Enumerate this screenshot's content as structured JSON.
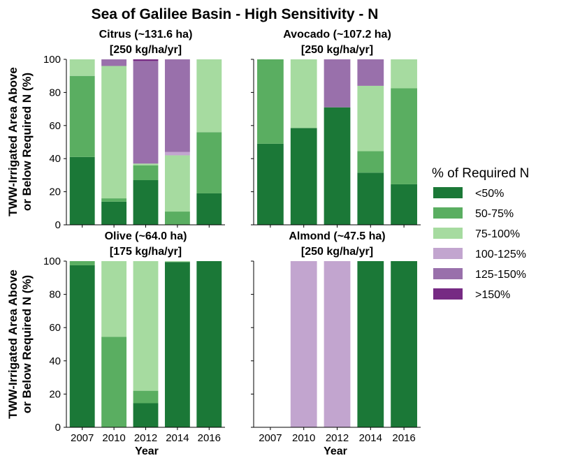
{
  "figure_title": "Sea of Galilee Basin - High Sensitivity - N",
  "ylabel_line1": "TWW-Irrigated Area Above",
  "ylabel_line2": "or Below Required N (%)",
  "xlabel": "Year",
  "legend": {
    "title": "% of Required N",
    "entries": [
      {
        "label": "<50%",
        "color": "#1b7837"
      },
      {
        "label": "50-75%",
        "color": "#5aae61"
      },
      {
        "label": "75-100%",
        "color": "#a6dba0"
      },
      {
        "label": "100-125%",
        "color": "#c2a5cf"
      },
      {
        "label": "125-150%",
        "color": "#9970ab"
      },
      {
        "label": ">150%",
        "color": "#762a83"
      }
    ]
  },
  "chart_data": [
    {
      "type": "bar",
      "stacked": true,
      "title_line1": "Citrus (~131.6 ha)",
      "title_line2": "[250 kg/ha/yr]",
      "categories": [
        "2007",
        "2010",
        "2012",
        "2014",
        "2016"
      ],
      "ylim": [
        0,
        100
      ],
      "yticks": [
        0,
        20,
        40,
        60,
        80,
        100
      ],
      "series": [
        {
          "name": "<50%",
          "values": [
            41,
            14,
            27,
            0,
            19
          ]
        },
        {
          "name": "50-75%",
          "values": [
            49,
            2,
            9,
            8,
            37
          ]
        },
        {
          "name": "75-100%",
          "values": [
            10,
            80,
            1,
            34,
            44
          ]
        },
        {
          "name": "100-125%",
          "values": [
            0,
            0,
            0,
            2,
            0
          ]
        },
        {
          "name": "125-150%",
          "values": [
            0,
            4,
            62,
            56,
            0
          ]
        },
        {
          "name": ">150%",
          "values": [
            0,
            0,
            1,
            0,
            0
          ]
        }
      ]
    },
    {
      "type": "bar",
      "stacked": true,
      "title_line1": "Avocado (~107.2 ha)",
      "title_line2": "[250 kg/ha/yr]",
      "categories": [
        "2007",
        "2010",
        "2012",
        "2014",
        "2016"
      ],
      "ylim": [
        0,
        100
      ],
      "yticks": [
        0,
        20,
        40,
        60,
        80,
        100
      ],
      "series": [
        {
          "name": "<50%",
          "values": [
            49,
            58.5,
            71,
            31.5,
            24.5
          ]
        },
        {
          "name": "50-75%",
          "values": [
            51,
            0,
            0,
            13,
            58
          ]
        },
        {
          "name": "75-100%",
          "values": [
            0,
            41.5,
            0,
            39.5,
            17.5
          ]
        },
        {
          "name": "100-125%",
          "values": [
            0,
            0,
            0,
            0,
            0
          ]
        },
        {
          "name": "125-150%",
          "values": [
            0,
            0,
            29,
            16,
            0
          ]
        },
        {
          "name": ">150%",
          "values": [
            0,
            0,
            0,
            0,
            0
          ]
        }
      ]
    },
    {
      "type": "bar",
      "stacked": true,
      "title_line1": "Olive (~64.0 ha)",
      "title_line2": "[175 kg/ha/yr]",
      "categories": [
        "2007",
        "2010",
        "2012",
        "2014",
        "2016"
      ],
      "ylim": [
        0,
        100
      ],
      "yticks": [
        0,
        20,
        40,
        60,
        80,
        100
      ],
      "series": [
        {
          "name": "<50%",
          "values": [
            97.5,
            0,
            14.5,
            99.5,
            100
          ]
        },
        {
          "name": "50-75%",
          "values": [
            2.5,
            54.5,
            7.5,
            0,
            0
          ]
        },
        {
          "name": "75-100%",
          "values": [
            0,
            45.5,
            78,
            0.5,
            0
          ]
        },
        {
          "name": "100-125%",
          "values": [
            0,
            0,
            0,
            0,
            0
          ]
        },
        {
          "name": "125-150%",
          "values": [
            0,
            0,
            0,
            0,
            0
          ]
        },
        {
          "name": ">150%",
          "values": [
            0,
            0,
            0,
            0,
            0
          ]
        }
      ]
    },
    {
      "type": "bar",
      "stacked": true,
      "title_line1": "Almond (~47.5 ha)",
      "title_line2": "[250 kg/ha/yr]",
      "categories": [
        "2007",
        "2010",
        "2012",
        "2014",
        "2016"
      ],
      "ylim": [
        0,
        100
      ],
      "yticks": [
        0,
        20,
        40,
        60,
        80,
        100
      ],
      "series": [
        {
          "name": "<50%",
          "values": [
            0,
            0,
            0,
            100,
            100
          ]
        },
        {
          "name": "50-75%",
          "values": [
            0,
            0,
            0,
            0,
            0
          ]
        },
        {
          "name": "75-100%",
          "values": [
            0,
            0,
            0,
            0,
            0
          ]
        },
        {
          "name": "100-125%",
          "values": [
            0,
            100,
            100,
            0,
            0
          ]
        },
        {
          "name": "125-150%",
          "values": [
            0,
            0,
            0,
            0,
            0
          ]
        },
        {
          "name": ">150%",
          "values": [
            0,
            0,
            0,
            0,
            0
          ]
        }
      ]
    }
  ]
}
